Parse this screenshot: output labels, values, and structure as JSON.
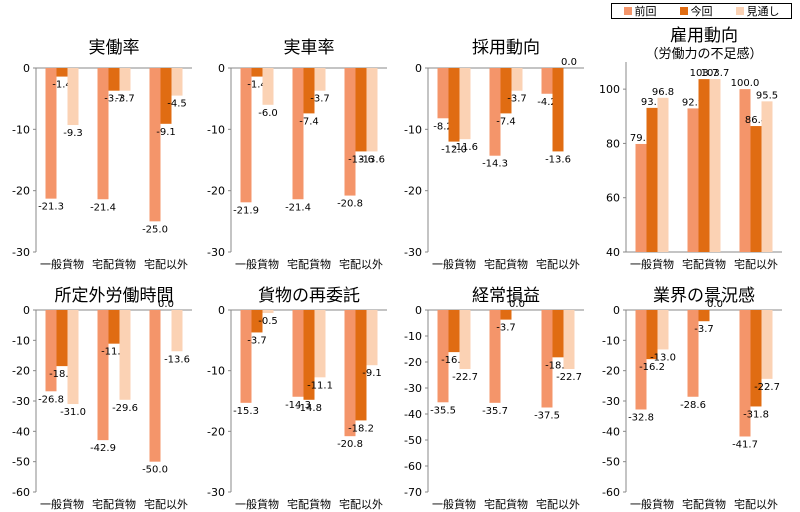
{
  "legend": {
    "items": [
      {
        "label": "前回",
        "color": "#f4956a"
      },
      {
        "label": "今回",
        "color": "#e06c12"
      },
      {
        "label": "見通し",
        "color": "#fbd2b4"
      }
    ]
  },
  "chart_data": [
    {
      "type": "bar",
      "title": "実働率",
      "categories": [
        "一般貨物",
        "宅配貨物",
        "宅配以外"
      ],
      "ylim": [
        -30,
        0
      ],
      "yticks": [
        0,
        -10,
        -20,
        -30
      ],
      "series": [
        {
          "name": "前回",
          "values": [
            -21.3,
            -21.4,
            -25.0
          ]
        },
        {
          "name": "今回",
          "values": [
            -1.4,
            -3.7,
            -9.1
          ]
        },
        {
          "name": "見通し",
          "values": [
            -9.3,
            -3.7,
            -4.5
          ]
        }
      ]
    },
    {
      "type": "bar",
      "title": "実車率",
      "categories": [
        "一般貨物",
        "宅配貨物",
        "宅配以外"
      ],
      "ylim": [
        -30,
        0
      ],
      "yticks": [
        0,
        -10,
        -20,
        -30
      ],
      "series": [
        {
          "name": "前回",
          "values": [
            -21.9,
            -21.4,
            -20.8
          ]
        },
        {
          "name": "今回",
          "values": [
            -1.4,
            -7.4,
            -13.6
          ]
        },
        {
          "name": "見通し",
          "values": [
            -6.0,
            -3.7,
            -13.6
          ]
        }
      ]
    },
    {
      "type": "bar",
      "title": "採用動向",
      "categories": [
        "一般貨物",
        "宅配貨物",
        "宅配以外"
      ],
      "ylim": [
        -30,
        0
      ],
      "yticks": [
        0,
        -10,
        -20,
        -30
      ],
      "series": [
        {
          "name": "前回",
          "values": [
            -8.2,
            -14.3,
            -4.2
          ]
        },
        {
          "name": "今回",
          "values": [
            -12.0,
            -7.4,
            -13.6
          ]
        },
        {
          "name": "見通し",
          "values": [
            -11.6,
            -3.7,
            0.0
          ]
        }
      ]
    },
    {
      "type": "bar",
      "title": "雇用動向",
      "subtitle": "（労働力の不足感）",
      "categories": [
        "一般貨物",
        "宅配貨物",
        "宅配以外"
      ],
      "ylim": [
        40,
        110
      ],
      "yticks": [
        100,
        80,
        60,
        40
      ],
      "series": [
        {
          "name": "前回",
          "values": [
            79.8,
            92.9,
            100.0
          ]
        },
        {
          "name": "今回",
          "values": [
            93.1,
            103.7,
            86.4
          ]
        },
        {
          "name": "見通し",
          "values": [
            96.8,
            103.7,
            95.5
          ]
        }
      ]
    },
    {
      "type": "bar",
      "title": "所定外労働時間",
      "categories": [
        "一般貨物",
        "宅配貨物",
        "宅配以外"
      ],
      "ylim": [
        -60,
        0
      ],
      "yticks": [
        0,
        -10,
        -20,
        -30,
        -40,
        -50,
        -60
      ],
      "series": [
        {
          "name": "前回",
          "values": [
            -26.8,
            -42.9,
            -50.0
          ]
        },
        {
          "name": "今回",
          "values": [
            -18.5,
            -11.1,
            0.0
          ]
        },
        {
          "name": "見通し",
          "values": [
            -31.0,
            -29.6,
            -13.6
          ]
        }
      ]
    },
    {
      "type": "bar",
      "title": "貨物の再委託",
      "categories": [
        "一般貨物",
        "宅配貨物",
        "宅配以外"
      ],
      "ylim": [
        -30,
        0
      ],
      "yticks": [
        0,
        -10,
        -20,
        -30
      ],
      "series": [
        {
          "name": "前回",
          "values": [
            -15.3,
            -14.3,
            -20.8
          ]
        },
        {
          "name": "今回",
          "values": [
            -3.7,
            -14.8,
            -18.2
          ]
        },
        {
          "name": "見通し",
          "values": [
            -0.5,
            -11.1,
            -9.1
          ]
        }
      ]
    },
    {
      "type": "bar",
      "title": "経常損益",
      "categories": [
        "一般貨物",
        "宅配貨物",
        "宅配以外"
      ],
      "ylim": [
        -70,
        0
      ],
      "yticks": [
        0,
        -10,
        -20,
        -30,
        -40,
        -50,
        -60,
        -70
      ],
      "series": [
        {
          "name": "前回",
          "values": [
            -35.5,
            -35.7,
            -37.5
          ]
        },
        {
          "name": "今回",
          "values": [
            -16.2,
            -3.7,
            -18.2
          ]
        },
        {
          "name": "見通し",
          "values": [
            -22.7,
            0.0,
            -22.7
          ]
        }
      ]
    },
    {
      "type": "bar",
      "title": "業界の景況感",
      "categories": [
        "一般貨物",
        "宅配貨物",
        "宅配以外"
      ],
      "ylim": [
        -60,
        0
      ],
      "yticks": [
        0,
        -10,
        -20,
        -30,
        -40,
        -50,
        -60
      ],
      "series": [
        {
          "name": "前回",
          "values": [
            -32.8,
            -28.6,
            -41.7
          ]
        },
        {
          "name": "今回",
          "values": [
            -16.2,
            -3.7,
            -31.8
          ]
        },
        {
          "name": "見通し",
          "values": [
            -13.0,
            0.0,
            -22.7
          ]
        }
      ]
    }
  ]
}
